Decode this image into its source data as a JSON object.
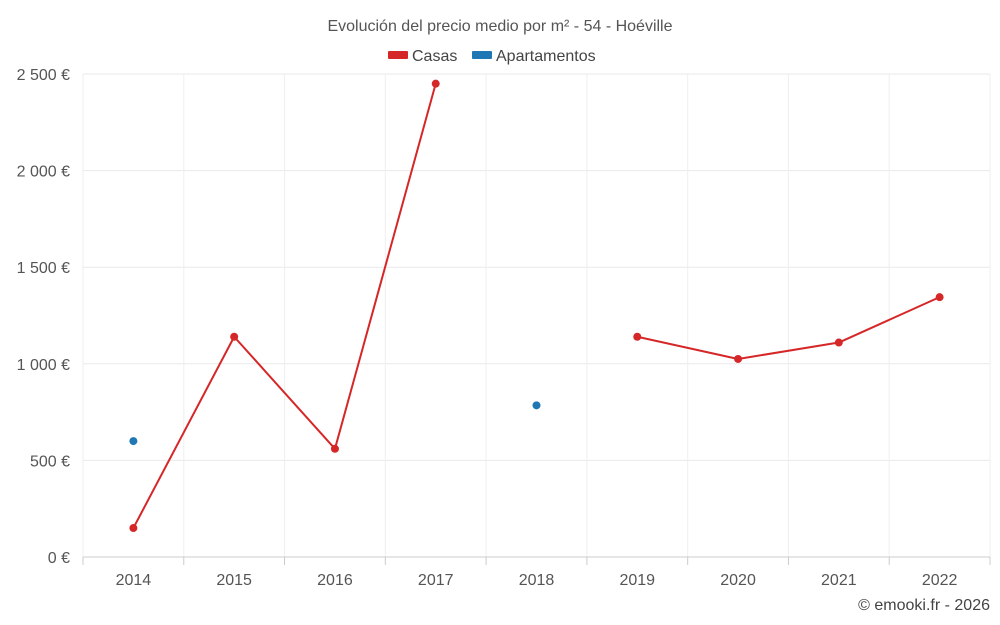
{
  "chart_data": {
    "type": "line",
    "title": "Evolución del precio medio por m² - 54 - Hoéville",
    "categories": [
      "2014",
      "2015",
      "2016",
      "2017",
      "2018",
      "2019",
      "2020",
      "2021",
      "2022"
    ],
    "series": [
      {
        "name": "Casas",
        "color": "#d62728",
        "values": [
          150,
          1140,
          560,
          2450,
          null,
          1140,
          1025,
          1110,
          1345
        ]
      },
      {
        "name": "Apartamentos",
        "color": "#1f77b4",
        "values": [
          600,
          null,
          null,
          null,
          785,
          null,
          null,
          null,
          null
        ]
      }
    ],
    "ylim": [
      0,
      2500
    ],
    "yticks": [
      0,
      500,
      1000,
      1500,
      2000,
      2500
    ],
    "ytick_labels": [
      "0 €",
      "500 €",
      "1 000 €",
      "1 500 €",
      "2 000 €",
      "2 500 €"
    ],
    "xlabel": "",
    "ylabel": "",
    "grid": true,
    "legend_position": "top-center",
    "credit": "© emooki.fr - 2026"
  }
}
